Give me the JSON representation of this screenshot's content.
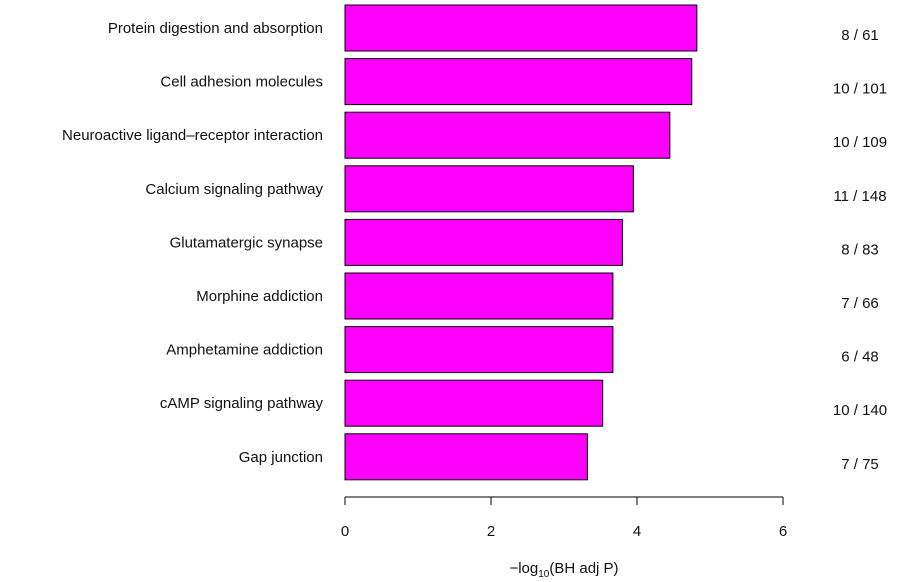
{
  "chart_data": {
    "type": "bar",
    "orientation": "horizontal",
    "categories": [
      "Protein digestion and absorption",
      "Cell adhesion molecules",
      "Neuroactive ligand–receptor interaction",
      "Calcium signaling pathway",
      "Glutamatergic synapse",
      "Morphine addiction",
      "Amphetamine addiction",
      "cAMP signaling pathway",
      "Gap junction"
    ],
    "values": [
      4.82,
      4.75,
      4.45,
      3.95,
      3.8,
      3.67,
      3.67,
      3.53,
      3.32
    ],
    "ratios": [
      "8 / 61",
      "10 / 101",
      "10 / 109",
      "11 / 148",
      "8 / 83",
      "7 / 66",
      "6 / 48",
      "10 / 140",
      "7 / 75"
    ],
    "xlim": [
      0,
      6
    ],
    "xticks": [
      "0",
      "2",
      "4",
      "6"
    ],
    "xlabel": {
      "prefix": "−log",
      "subscript": "10",
      "suffix": "(BH adj P)"
    },
    "grid": false,
    "legend": "none",
    "colors": {
      "bar_fill": "#ff00ff",
      "bar_stroke": "#000000",
      "axis": "#000000",
      "text": "#111111"
    }
  }
}
